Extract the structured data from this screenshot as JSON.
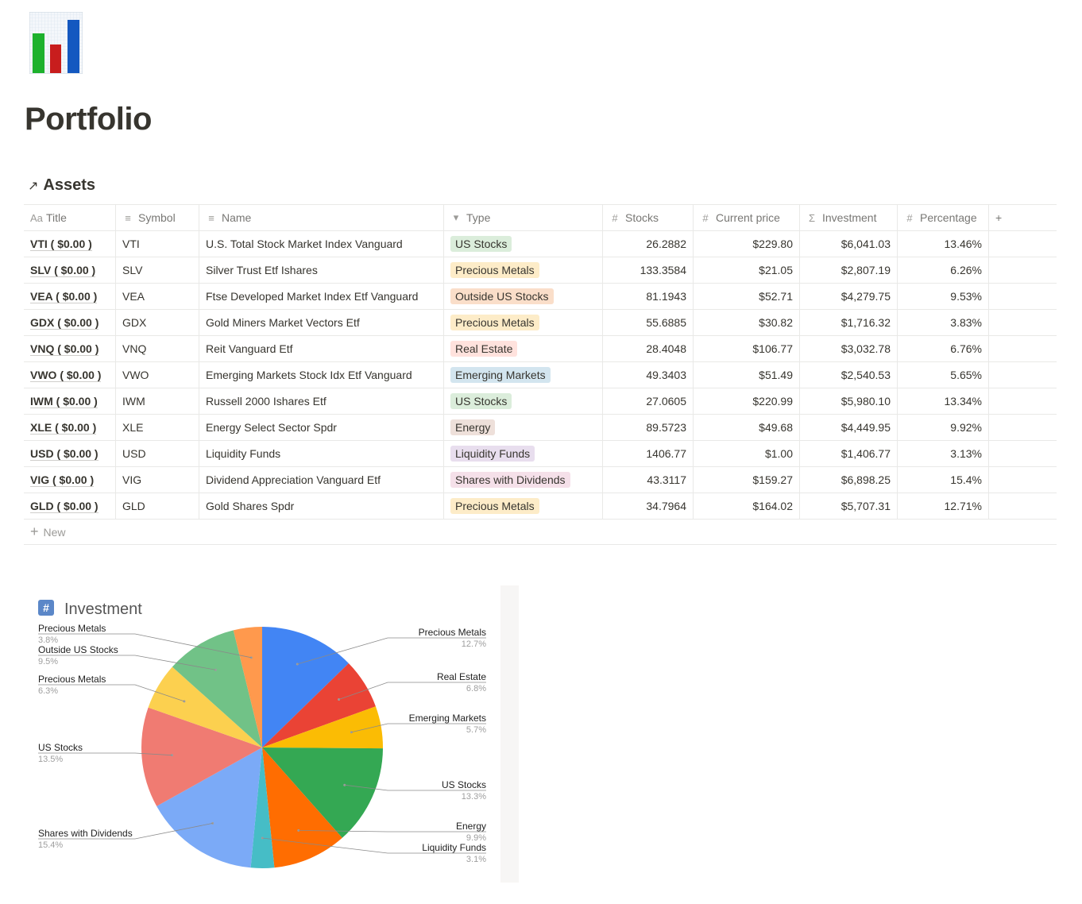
{
  "page": {
    "title": "Portfolio",
    "icon": "bar-chart-icon"
  },
  "database": {
    "title": "Assets",
    "link_icon": "arrow-up-right-icon",
    "columns": [
      {
        "label": "Title",
        "icon": "Aa"
      },
      {
        "label": "Symbol",
        "icon": "≡"
      },
      {
        "label": "Name",
        "icon": "≡"
      },
      {
        "label": "Type",
        "icon": "▾"
      },
      {
        "label": "Stocks",
        "icon": "#"
      },
      {
        "label": "Current price",
        "icon": "#"
      },
      {
        "label": "Investment",
        "icon": "Σ"
      },
      {
        "label": "Percentage",
        "icon": "#"
      }
    ],
    "add_column_label": "+",
    "new_row_label": "New",
    "rows": [
      {
        "title": "VTI ( $0.00 )",
        "symbol": "VTI",
        "name": "U.S. Total Stock Market Index Vanguard",
        "type": "US Stocks",
        "type_color": "#dbeddb",
        "stocks": "26.2882",
        "price": "$229.80",
        "investment": "$6,041.03",
        "percentage": "13.46%"
      },
      {
        "title": "SLV ( $0.00 )",
        "symbol": "SLV",
        "name": "Silver Trust Etf Ishares",
        "type": "Precious Metals",
        "type_color": "#fdecc8",
        "stocks": "133.3584",
        "price": "$21.05",
        "investment": "$2,807.19",
        "percentage": "6.26%"
      },
      {
        "title": "VEA ( $0.00 )",
        "symbol": "VEA",
        "name": "Ftse Developed Market Index Etf Vanguard",
        "type": "Outside US Stocks",
        "type_color": "#fadec9",
        "stocks": "81.1943",
        "price": "$52.71",
        "investment": "$4,279.75",
        "percentage": "9.53%"
      },
      {
        "title": "GDX ( $0.00 )",
        "symbol": "GDX",
        "name": "Gold Miners Market Vectors Etf",
        "type": "Precious Metals",
        "type_color": "#fdecc8",
        "stocks": "55.6885",
        "price": "$30.82",
        "investment": "$1,716.32",
        "percentage": "3.83%"
      },
      {
        "title": "VNQ ( $0.00 )",
        "symbol": "VNQ",
        "name": "Reit Vanguard Etf",
        "type": "Real Estate",
        "type_color": "#ffe2dd",
        "stocks": "28.4048",
        "price": "$106.77",
        "investment": "$3,032.78",
        "percentage": "6.76%"
      },
      {
        "title": "VWO ( $0.00 )",
        "symbol": "VWO",
        "name": "Emerging Markets Stock Idx Etf Vanguard",
        "type": "Emerging Markets",
        "type_color": "#d3e5ef",
        "stocks": "49.3403",
        "price": "$51.49",
        "investment": "$2,540.53",
        "percentage": "5.65%"
      },
      {
        "title": "IWM ( $0.00 )",
        "symbol": "IWM",
        "name": "Russell 2000 Ishares Etf",
        "type": "US Stocks",
        "type_color": "#dbeddb",
        "stocks": "27.0605",
        "price": "$220.99",
        "investment": "$5,980.10",
        "percentage": "13.34%"
      },
      {
        "title": "XLE ( $0.00 )",
        "symbol": "XLE",
        "name": "Energy Select Sector Spdr",
        "type": "Energy",
        "type_color": "#eee0da",
        "stocks": "89.5723",
        "price": "$49.68",
        "investment": "$4,449.95",
        "percentage": "9.92%"
      },
      {
        "title": "USD ( $0.00 )",
        "symbol": "USD",
        "name": "Liquidity Funds",
        "type": "Liquidity Funds",
        "type_color": "#e8deee",
        "stocks": "1406.77",
        "price": "$1.00",
        "investment": "$1,406.77",
        "percentage": "3.13%"
      },
      {
        "title": "VIG ( $0.00 )",
        "symbol": "VIG",
        "name": "Dividend Appreciation Vanguard Etf",
        "type": "Shares with Dividends",
        "type_color": "#f5e0e9",
        "stocks": "43.3117",
        "price": "$159.27",
        "investment": "$6,898.25",
        "percentage": "15.4%"
      },
      {
        "title": "GLD ( $0.00 )",
        "symbol": "GLD",
        "name": "Gold Shares Spdr",
        "type": "Precious Metals",
        "type_color": "#fdecc8",
        "stocks": "34.7964",
        "price": "$164.02",
        "investment": "$5,707.31",
        "percentage": "12.71%"
      }
    ]
  },
  "chart_data": {
    "type": "pie",
    "title": "Investment",
    "title_icon": "hash-icon",
    "slices": [
      {
        "label": "Precious Metals",
        "pct_label": "12.7%",
        "value": 12.71,
        "color": "#4285f4"
      },
      {
        "label": "Real Estate",
        "pct_label": "6.8%",
        "value": 6.76,
        "color": "#ea4335"
      },
      {
        "label": "Emerging Markets",
        "pct_label": "5.7%",
        "value": 5.65,
        "color": "#fbbc04"
      },
      {
        "label": "US Stocks",
        "pct_label": "13.3%",
        "value": 13.34,
        "color": "#34a853"
      },
      {
        "label": "Energy",
        "pct_label": "9.9%",
        "value": 9.92,
        "color": "#ff6d01"
      },
      {
        "label": "Liquidity Funds",
        "pct_label": "3.1%",
        "value": 3.13,
        "color": "#46bdc6"
      },
      {
        "label": "Shares with Dividends",
        "pct_label": "15.4%",
        "value": 15.4,
        "color": "#7baaf7"
      },
      {
        "label": "US Stocks",
        "pct_label": "13.5%",
        "value": 13.46,
        "color": "#f07b72"
      },
      {
        "label": "Precious Metals",
        "pct_label": "6.3%",
        "value": 6.26,
        "color": "#fcd04f"
      },
      {
        "label": "Outside US Stocks",
        "pct_label": "9.5%",
        "value": 9.53,
        "color": "#71c287"
      },
      {
        "label": "Precious Metals",
        "pct_label": "3.8%",
        "value": 3.83,
        "color": "#ff994d"
      }
    ]
  }
}
